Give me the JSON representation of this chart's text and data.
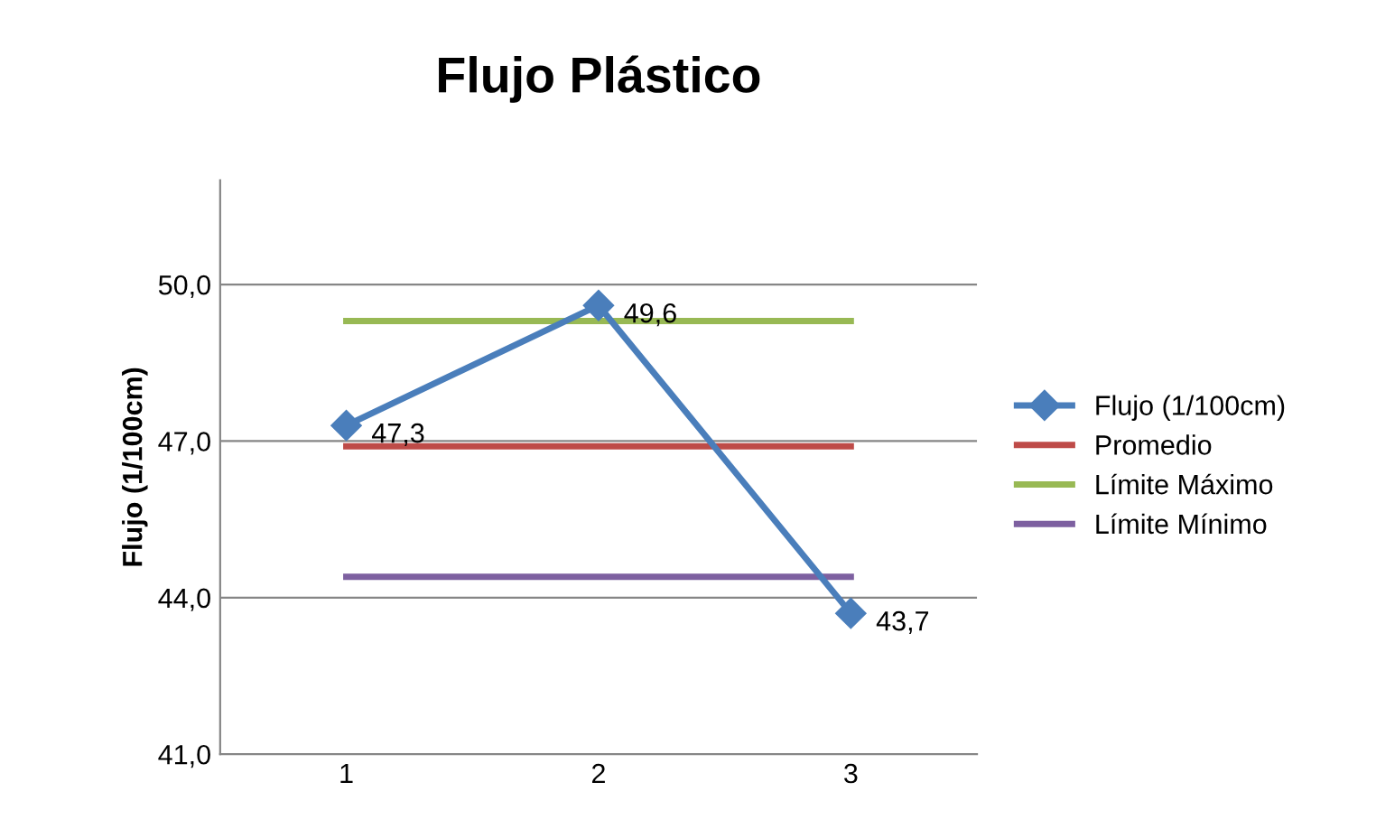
{
  "chart_data": {
    "type": "line",
    "title": "Flujo Plástico",
    "ylabel": "Flujo (1/100cm)",
    "categories": [
      "1",
      "2",
      "3"
    ],
    "series": [
      {
        "name": "Flujo (1/100cm)",
        "color": "#4a7ebb",
        "values": [
          47.3,
          49.6,
          43.7
        ],
        "marker": "diamond",
        "value_labels": [
          "47,3",
          "49,6",
          "43,7"
        ]
      },
      {
        "name": "Promedio",
        "color": "#be4b48",
        "values": [
          46.9,
          46.9,
          46.9
        ],
        "marker": "none"
      },
      {
        "name": "Límite Máximo",
        "color": "#98b954",
        "values": [
          49.3,
          49.3,
          49.3
        ],
        "marker": "none"
      },
      {
        "name": "Límite Mínimo",
        "color": "#7d60a0",
        "values": [
          44.4,
          44.4,
          44.4
        ],
        "marker": "none"
      }
    ],
    "ylim": [
      41,
      52
    ],
    "yticks": [
      {
        "value": 41,
        "label": "41,0"
      },
      {
        "value": 44,
        "label": "44,0"
      },
      {
        "value": 47,
        "label": "47,0"
      },
      {
        "value": 50,
        "label": "50,0"
      }
    ],
    "grid": "y",
    "legend": "right",
    "line_style": "solid"
  }
}
